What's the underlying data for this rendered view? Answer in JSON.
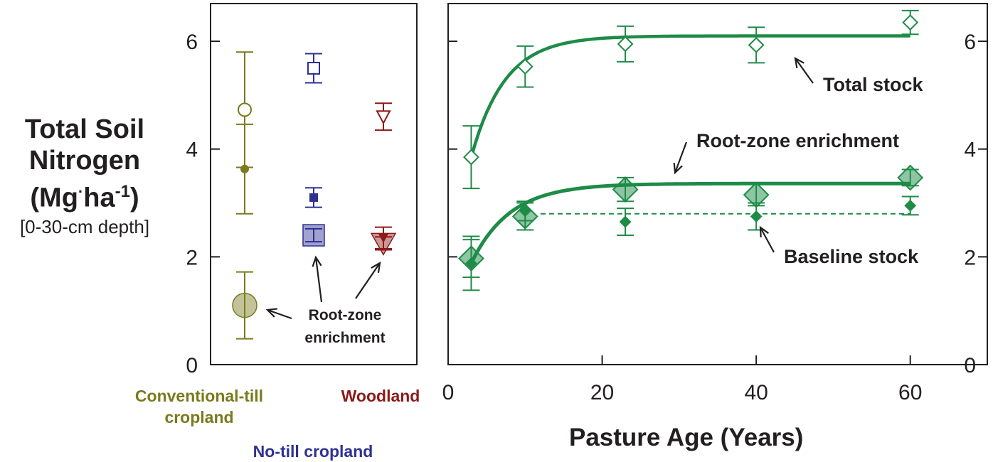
{
  "figure": {
    "y_axis": {
      "line1": "Total Soil",
      "line2": "Nitrogen",
      "unit_open": "(Mg",
      "unit_dot": "·",
      "unit_ha": "ha",
      "unit_exp": "-1",
      "unit_close": ")",
      "depth": "[0-30-cm depth]"
    },
    "colors": {
      "conventional": "#7a7a1e",
      "notill": "#2e3192",
      "woodland": "#8b1a1a",
      "pasture": "#1e8b47",
      "axis": "#231f20"
    }
  },
  "chart_data": [
    {
      "type": "scatter",
      "panel": "left",
      "ylim": [
        0,
        6.7
      ],
      "yticks": [
        "0",
        "2",
        "4",
        "6"
      ],
      "categories": [
        "Conventional-till cropland",
        "No-till cropland",
        "Woodland"
      ],
      "category_labels": {
        "conventional": [
          "Conventional-till",
          "cropland"
        ],
        "notill": "No-till cropland",
        "woodland": "Woodland"
      },
      "series": [
        {
          "name": "Total stock",
          "values": [
            4.73,
            5.5,
            4.6
          ],
          "error": [
            1.07,
            0.27,
            0.25
          ]
        },
        {
          "name": "Baseline stock",
          "values": [
            3.63,
            3.1,
            2.35
          ],
          "error": [
            0.83,
            0.18,
            0.2
          ]
        },
        {
          "name": "Root-zone enrichment",
          "values": [
            1.1,
            2.4,
            2.25
          ],
          "error": [
            0.62,
            0.12,
            0.12
          ]
        }
      ],
      "annotation": [
        "Root-zone",
        "enrichment"
      ]
    },
    {
      "type": "line",
      "panel": "right",
      "xlabel": "Pasture Age (Years)",
      "xlim": [
        0,
        70
      ],
      "ylim": [
        0,
        6.7
      ],
      "xticks": [
        "0",
        "20",
        "40",
        "60"
      ],
      "yticks": [
        "0",
        "2",
        "4",
        "6"
      ],
      "series": [
        {
          "name": "Total stock",
          "x": [
            3,
            10,
            23,
            40,
            60
          ],
          "y": [
            3.85,
            5.53,
            5.95,
            5.93,
            6.35
          ],
          "error": [
            0.58,
            0.38,
            0.33,
            0.33,
            0.22
          ],
          "fit": {
            "asymptote": 6.1,
            "start_x": 3,
            "start_y": 3.85,
            "rate": 0.23
          }
        },
        {
          "name": "Root-zone enrichment",
          "x": [
            3,
            10,
            23,
            40,
            60
          ],
          "y": [
            1.97,
            2.75,
            3.25,
            3.15,
            3.47
          ],
          "error": [
            0.35,
            0.25,
            0.22,
            0.2,
            0.15
          ],
          "fit": {
            "asymptote": 3.36,
            "start_x": 3,
            "start_y": 1.88,
            "rate": 0.2
          }
        },
        {
          "name": "Baseline stock",
          "x": [
            3,
            10,
            23,
            40,
            60
          ],
          "y": [
            1.88,
            2.85,
            2.65,
            2.75,
            2.95
          ],
          "error": [
            0.5,
            0.18,
            0.25,
            0.25,
            0.17
          ],
          "fit": {
            "plateau": 2.8,
            "plateau_start_x": 12
          }
        }
      ],
      "annotations": {
        "total": "Total stock",
        "root": "Root-zone enrichment",
        "baseline": "Baseline stock"
      }
    }
  ]
}
